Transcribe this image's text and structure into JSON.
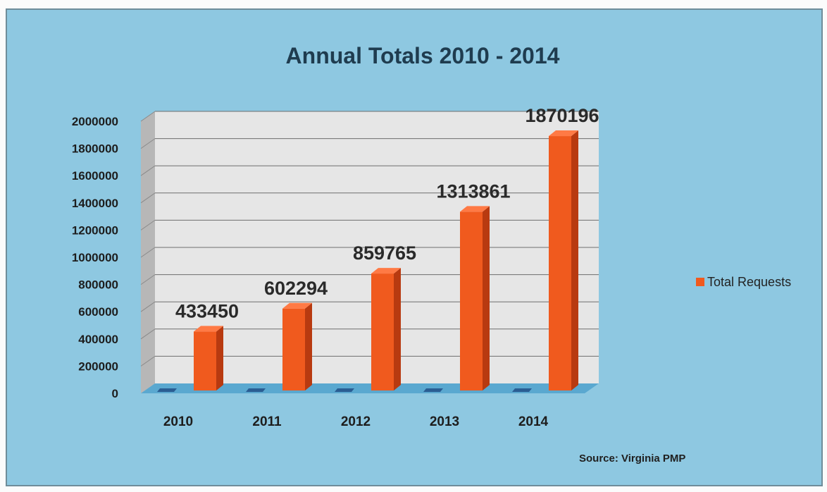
{
  "chart_data": {
    "type": "bar",
    "title": "Annual Totals 2010 - 2014",
    "categories": [
      "2010",
      "2011",
      "2012",
      "2013",
      "2014"
    ],
    "series": [
      {
        "name": "Total Requests",
        "values": [
          433450,
          602294,
          859765,
          1313861,
          1870196
        ]
      }
    ],
    "data_labels": [
      "433450",
      "602294",
      "859765",
      "1313861",
      "1870196"
    ],
    "y_ticks": [
      "0",
      "200000",
      "400000",
      "600000",
      "800000",
      "1000000",
      "1200000",
      "1400000",
      "1600000",
      "1800000",
      "2000000"
    ],
    "ylim": [
      0,
      2000000
    ],
    "xlabel": "",
    "ylabel": "",
    "grid": true,
    "legend_position": "right",
    "source": "Source:  Virginia PMP",
    "colors": {
      "background": "#8ec8e1",
      "plot_wall": "#e6e6e6",
      "bar": "#f05a1e",
      "bar_side": "#b83a10",
      "bar_top": "#ff7a45",
      "floor": "#5aa8d0",
      "second_series_marker": "#2a5d93"
    }
  }
}
